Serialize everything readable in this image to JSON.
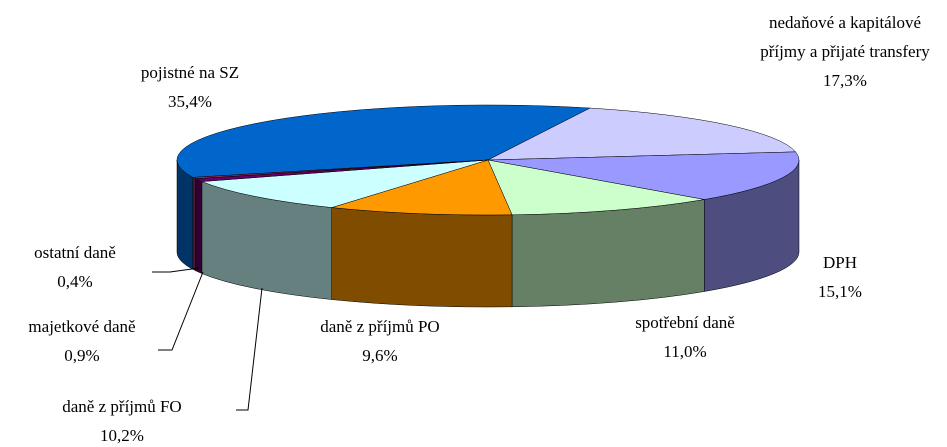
{
  "chart_data": {
    "type": "pie",
    "categories": [
      "pojistné na SZ",
      "nedaňové a kapitálové příjmy a přijaté transfery",
      "DPH",
      "spotřební daně",
      "daně z příjmů PO",
      "daně z příjmů FO",
      "majetkové daně",
      "ostatní daně"
    ],
    "values": [
      35.4,
      17.3,
      15.1,
      11.0,
      9.6,
      10.2,
      0.9,
      0.4
    ],
    "value_labels": [
      "35,4%",
      "17,3%",
      "15,1%",
      "11,0%",
      "9,6%",
      "10,2%",
      "0,9%",
      "0,4%"
    ],
    "colors": [
      "#0066cc",
      "#ccccff",
      "#9999ff",
      "#ccffcc",
      "#ff9900",
      "#ccffff",
      "#660066",
      "#993366"
    ]
  }
}
